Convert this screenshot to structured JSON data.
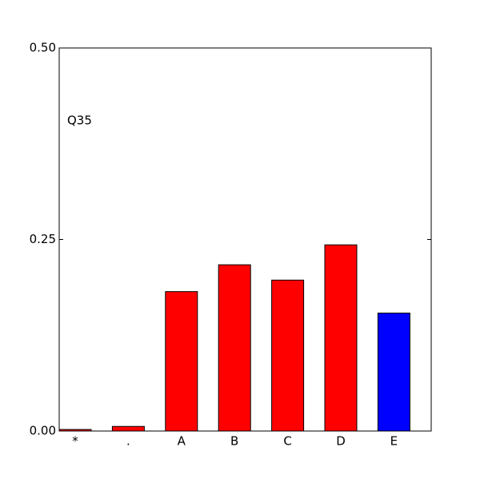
{
  "chart_data": {
    "type": "bar",
    "annotation": "Q35",
    "categories": [
      "*",
      ".",
      "A",
      "B",
      "C",
      "D",
      "E"
    ],
    "values": [
      0.002,
      0.006,
      0.182,
      0.217,
      0.197,
      0.243,
      0.154
    ],
    "colors": [
      "#ff0000",
      "#ff0000",
      "#ff0000",
      "#ff0000",
      "#ff0000",
      "#ff0000",
      "#0000ff"
    ],
    "ylim": [
      0,
      0.5
    ],
    "yticks": [
      {
        "value": 0,
        "label": "0.00"
      },
      0.25,
      {
        "value": 0.5,
        "label": "0.50"
      }
    ],
    "grid": false
  }
}
